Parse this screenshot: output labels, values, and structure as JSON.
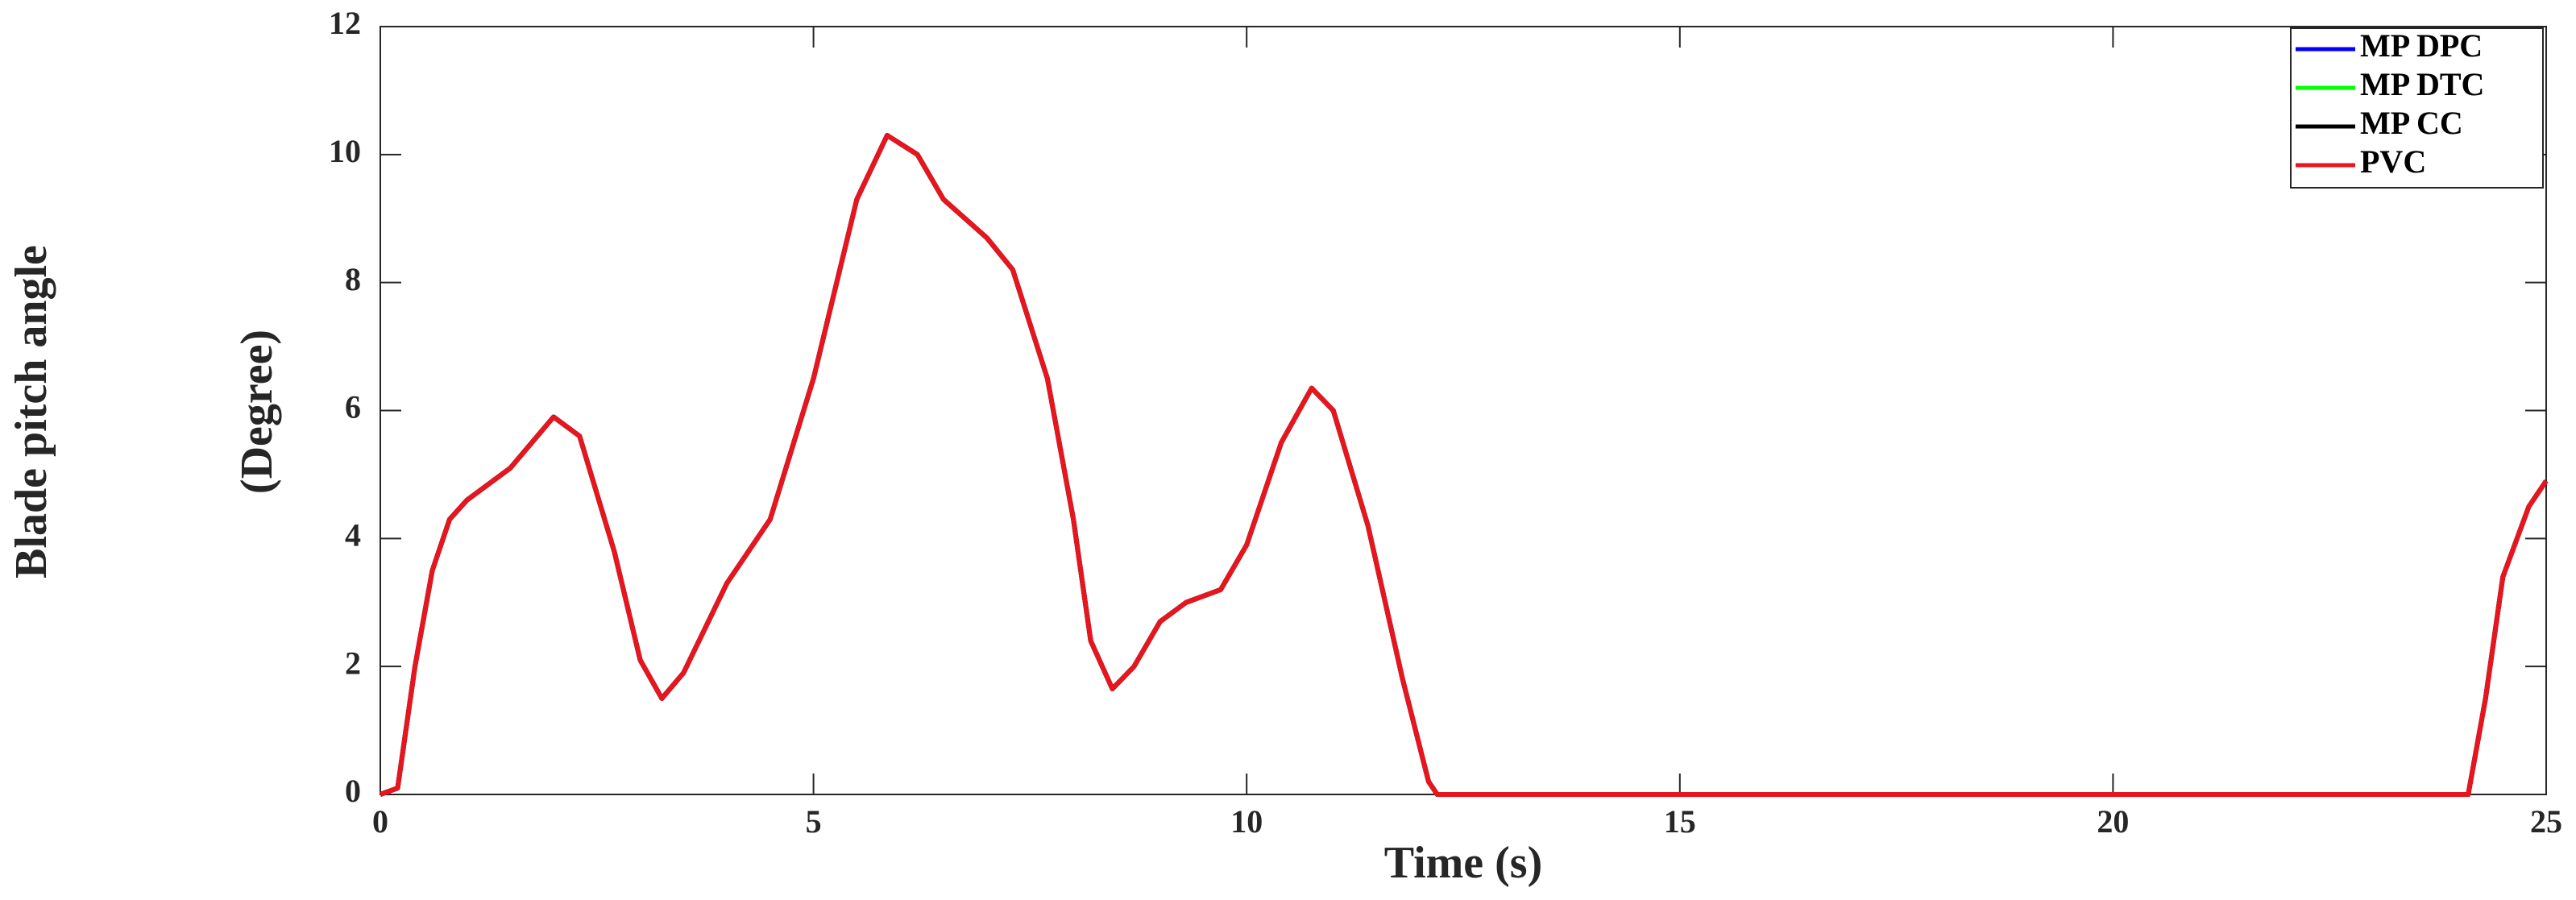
{
  "chart_data": {
    "type": "line",
    "xlabel": "Time (s)",
    "ylabel": [
      "Blade pitch angle",
      "(Degree)"
    ],
    "x": [
      0,
      0.2,
      0.4,
      0.6,
      0.8,
      1.0,
      1.5,
      2.0,
      2.3,
      2.7,
      3.0,
      3.25,
      3.5,
      4.0,
      4.5,
      5.0,
      5.5,
      5.85,
      6.2,
      6.5,
      7.0,
      7.3,
      7.7,
      8.0,
      8.2,
      8.45,
      8.7,
      9.0,
      9.3,
      9.7,
      10.0,
      10.4,
      10.75,
      11.0,
      11.4,
      11.8,
      12.1,
      12.2,
      24.1,
      24.3,
      24.5,
      24.8,
      25
    ],
    "series": [
      {
        "name": "MP DPC",
        "color": "#0000ff",
        "values": [
          0,
          0.1,
          2,
          3.5,
          4.3,
          4.6,
          5.1,
          5.9,
          5.6,
          3.8,
          2.1,
          1.5,
          1.9,
          3.3,
          4.3,
          6.5,
          9.3,
          10.3,
          10.0,
          9.3,
          8.7,
          8.2,
          6.5,
          4.3,
          2.4,
          1.65,
          2.0,
          2.7,
          3.0,
          3.2,
          3.9,
          5.5,
          6.35,
          6.0,
          4.2,
          1.8,
          0.2,
          0,
          0,
          1.5,
          3.4,
          4.5,
          4.9
        ]
      },
      {
        "name": "MP DTC",
        "color": "#00ff00",
        "values": [
          0,
          0.1,
          2,
          3.5,
          4.3,
          4.6,
          5.1,
          5.9,
          5.6,
          3.8,
          2.1,
          1.5,
          1.9,
          3.3,
          4.3,
          6.5,
          9.3,
          10.3,
          10.0,
          9.3,
          8.7,
          8.2,
          6.5,
          4.3,
          2.4,
          1.65,
          2.0,
          2.7,
          3.0,
          3.2,
          3.9,
          5.5,
          6.35,
          6.0,
          4.2,
          1.8,
          0.2,
          0,
          0,
          1.5,
          3.4,
          4.5,
          4.9
        ]
      },
      {
        "name": "MP CC",
        "color": "#000000",
        "values": [
          0,
          0.1,
          2,
          3.5,
          4.3,
          4.6,
          5.1,
          5.9,
          5.6,
          3.8,
          2.1,
          1.5,
          1.9,
          3.3,
          4.3,
          6.5,
          9.3,
          10.3,
          10.0,
          9.3,
          8.7,
          8.2,
          6.5,
          4.3,
          2.4,
          1.65,
          2.0,
          2.7,
          3.0,
          3.2,
          3.9,
          5.5,
          6.35,
          6.0,
          4.2,
          1.8,
          0.2,
          0,
          0,
          1.5,
          3.4,
          4.5,
          4.9
        ]
      },
      {
        "name": "PVC",
        "color": "#e8141e",
        "values": [
          0,
          0.1,
          2,
          3.5,
          4.3,
          4.6,
          5.1,
          5.9,
          5.6,
          3.8,
          2.1,
          1.5,
          1.9,
          3.3,
          4.3,
          6.5,
          9.3,
          10.3,
          10.0,
          9.3,
          8.7,
          8.2,
          6.5,
          4.3,
          2.4,
          1.65,
          2.0,
          2.7,
          3.0,
          3.2,
          3.9,
          5.5,
          6.35,
          6.0,
          4.2,
          1.8,
          0.2,
          0,
          0,
          1.5,
          3.4,
          4.5,
          4.9
        ]
      }
    ],
    "xlim": [
      0,
      25
    ],
    "xticks": [
      0,
      5,
      10,
      15,
      20,
      25
    ],
    "ylim": [
      0,
      12
    ],
    "yticks": [
      0,
      2,
      4,
      6,
      8,
      10,
      12
    ],
    "legend": "upper right"
  }
}
